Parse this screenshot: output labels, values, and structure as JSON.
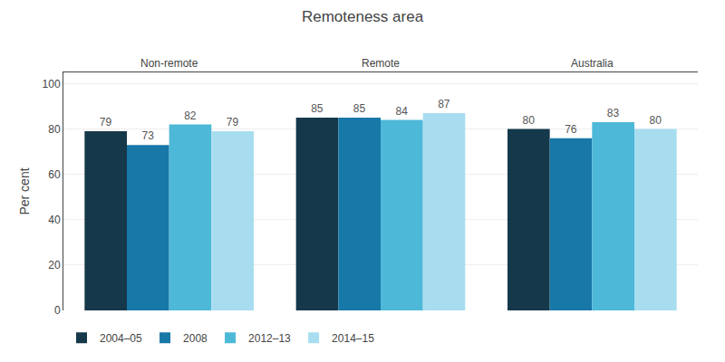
{
  "chart_data": {
    "type": "bar",
    "title": "Remoteness area",
    "y_label": "Per cent",
    "categories": [
      "Non-remote",
      "Remote",
      "Australia"
    ],
    "series": [
      {
        "name": "2004–05",
        "color": "#15384a",
        "values": [
          79,
          85,
          80
        ]
      },
      {
        "name": "2008",
        "color": "#1878a8",
        "values": [
          73,
          85,
          76
        ]
      },
      {
        "name": "2012–13",
        "color": "#4db8d8",
        "values": [
          82,
          84,
          83
        ]
      },
      {
        "name": "2014–15",
        "color": "#a8ddf0",
        "values": [
          79,
          87,
          80
        ]
      }
    ],
    "ylim": [
      0,
      105
    ],
    "yticks": [
      0,
      20,
      40,
      60,
      80,
      100
    ],
    "grid": true,
    "legend": "bottom left",
    "data_labels": true
  }
}
